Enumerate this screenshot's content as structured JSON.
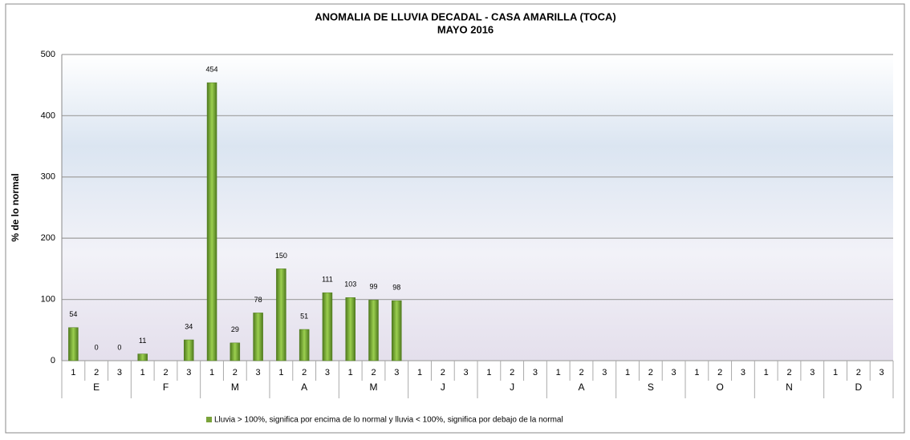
{
  "chart_data": {
    "type": "bar",
    "title": "ANOMALIA DE LLUVIA DECADAL - CASA AMARILLA  (TOCA)",
    "subtitle": "MAYO  2016",
    "y_label": "% de lo normal",
    "categories": [
      "1",
      "2",
      "3",
      "1",
      "2",
      "3",
      "1",
      "2",
      "3",
      "1",
      "2",
      "3",
      "1",
      "2",
      "3",
      "1",
      "2",
      "3",
      "1",
      "2",
      "3",
      "1",
      "2",
      "3",
      "1",
      "2",
      "3",
      "1",
      "2",
      "3",
      "1",
      "2",
      "3",
      "1",
      "2",
      "3"
    ],
    "groups": [
      "E",
      "F",
      "M",
      "A",
      "M",
      "J",
      "J",
      "A",
      "S",
      "O",
      "N",
      "D"
    ],
    "series": [
      {
        "name": "Lluvia > 100%, significa por encima de lo normal y lluvia < 100%, significa por debajo de la normal",
        "color": "#7aa33a",
        "values": [
          54,
          0,
          0,
          11,
          null,
          34,
          454,
          29,
          78,
          150,
          51,
          111,
          103,
          99,
          98,
          null,
          null,
          null,
          null,
          null,
          null,
          null,
          null,
          null,
          null,
          null,
          null,
          null,
          null,
          null,
          null,
          null,
          null,
          null,
          null,
          null
        ]
      }
    ],
    "ylim": [
      0,
      500
    ],
    "yticks": [
      0,
      100,
      200,
      300,
      400,
      500
    ],
    "grid": true,
    "legend": "bottom"
  }
}
